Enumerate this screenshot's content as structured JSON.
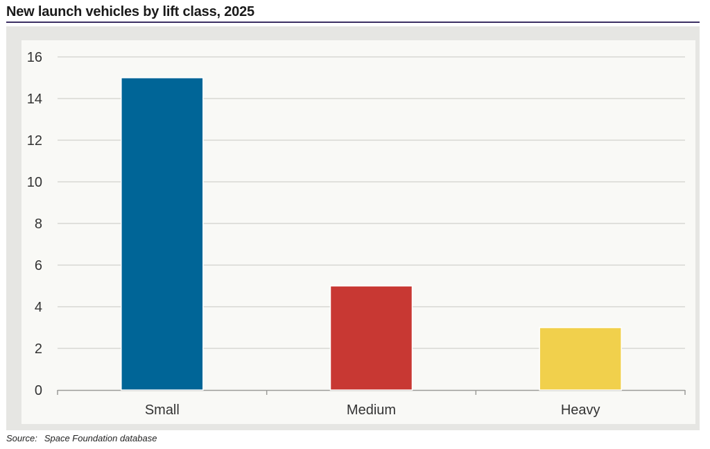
{
  "chart_data": {
    "type": "bar",
    "title": "New launch vehicles by lift class, 2025",
    "categories": [
      "Small",
      "Medium",
      "Heavy"
    ],
    "values": [
      15,
      5,
      3
    ],
    "colors": [
      "#006597",
      "#c83833",
      "#f1d04c"
    ],
    "ylim": [
      0,
      16
    ],
    "yticks": [
      "0",
      "2",
      "4",
      "6",
      "8",
      "10",
      "12",
      "14",
      "16"
    ],
    "grid": true,
    "legend": "none"
  },
  "source": {
    "label": "Source:",
    "text": "Space Foundation database"
  },
  "style": {
    "rule_color": "#3b2f63",
    "grid_color": "#d7d7d4",
    "axis_color": "#9b9b98",
    "text_color": "#333333"
  }
}
